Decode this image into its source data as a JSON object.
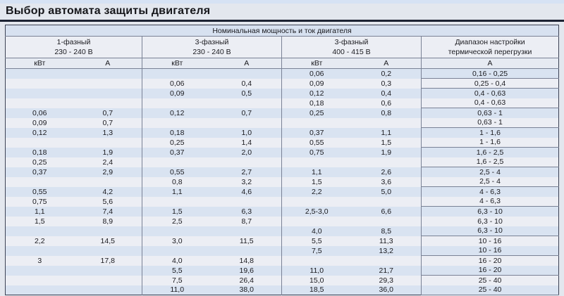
{
  "title": "Выбор автомата защиты двигателя",
  "table": {
    "header": {
      "span_title": "Номинальная мощность и ток двигателя",
      "groups": [
        {
          "line1": "1-фазный",
          "line2": "230 - 240 В"
        },
        {
          "line1": "3-фазный",
          "line2": "230 - 240 В"
        },
        {
          "line1": "3-фазный",
          "line2": "400 - 415 В"
        },
        {
          "line1": "Диапазон настройки",
          "line2": "термической перегрузки"
        }
      ],
      "units": [
        "кВт",
        "А",
        "кВт",
        "А",
        "кВт",
        "А",
        "А"
      ]
    },
    "columns": [
      "1ph_230_240_kw",
      "1ph_230_240_a",
      "3ph_230_240_kw",
      "3ph_230_240_a",
      "3ph_400_415_kw",
      "3ph_400_415_a",
      "thermal_overload_range_a"
    ],
    "rows": [
      [
        "",
        "",
        "",
        "",
        "0,06",
        "0,2",
        "0,16 - 0,25"
      ],
      [
        "",
        "",
        "0,06",
        "0,4",
        "0,09",
        "0,3",
        "0,25 - 0,4"
      ],
      [
        "",
        "",
        "0,09",
        "0,5",
        "0,12",
        "0,4",
        "0,4 - 0,63"
      ],
      [
        "",
        "",
        "",
        "",
        "0,18",
        "0,6",
        "0,4 - 0,63"
      ],
      [
        "0,06",
        "0,7",
        "0,12",
        "0,7",
        "0,25",
        "0,8",
        "0,63 - 1"
      ],
      [
        "0,09",
        "0,7",
        "",
        "",
        "",
        "",
        "0,63 - 1"
      ],
      [
        "0,12",
        "1,3",
        "0,18",
        "1,0",
        "0,37",
        "1,1",
        "1 - 1,6"
      ],
      [
        "",
        "",
        "0,25",
        "1,4",
        "0,55",
        "1,5",
        "1 - 1,6"
      ],
      [
        "0,18",
        "1,9",
        "0,37",
        "2,0",
        "0,75",
        "1,9",
        "1,6 - 2,5"
      ],
      [
        "0,25",
        "2,4",
        "",
        "",
        "",
        "",
        "1,6 - 2,5"
      ],
      [
        "0,37",
        "2,9",
        "0,55",
        "2,7",
        "1,1",
        "2,6",
        "2,5 - 4"
      ],
      [
        "",
        "",
        "0,8",
        "3,2",
        "1,5",
        "3,6",
        "2,5 - 4"
      ],
      [
        "0,55",
        "4,2",
        "1,1",
        "4,6",
        "2,2",
        "5,0",
        "4 - 6,3"
      ],
      [
        "0,75",
        "5,6",
        "",
        "",
        "",
        "",
        "4 - 6,3"
      ],
      [
        "1,1",
        "7,4",
        "1,5",
        "6,3",
        "2,5-3,0",
        "6,6",
        "6,3 - 10"
      ],
      [
        "1,5",
        "8,9",
        "2,5",
        "8,7",
        "",
        "",
        "6,3 - 10"
      ],
      [
        "",
        "",
        "",
        "",
        "4,0",
        "8,5",
        "6,3 - 10"
      ],
      [
        "2,2",
        "14,5",
        "3,0",
        "11,5",
        "5,5",
        "11,3",
        "10 - 16"
      ],
      [
        "",
        "",
        "",
        "",
        "7,5",
        "13,2",
        "10 - 16"
      ],
      [
        "3",
        "17,8",
        "4,0",
        "14,8",
        "",
        "",
        "16 - 20"
      ],
      [
        "",
        "",
        "5,5",
        "19,6",
        "11,0",
        "21,7",
        "16 - 20"
      ],
      [
        "",
        "",
        "7,5",
        "26,4",
        "15,0",
        "29,3",
        "25 - 40"
      ],
      [
        "",
        "",
        "11,0",
        "38,0",
        "18,5",
        "36,0",
        "25 - 40"
      ]
    ]
  },
  "colors": {
    "page_background": "#e3e7ee",
    "row_blue": "#d9e3f1",
    "row_white": "#eceef4",
    "grid_line": "#7a8296",
    "outer_border": "#3d4355",
    "title_rule": "#1c2333"
  }
}
